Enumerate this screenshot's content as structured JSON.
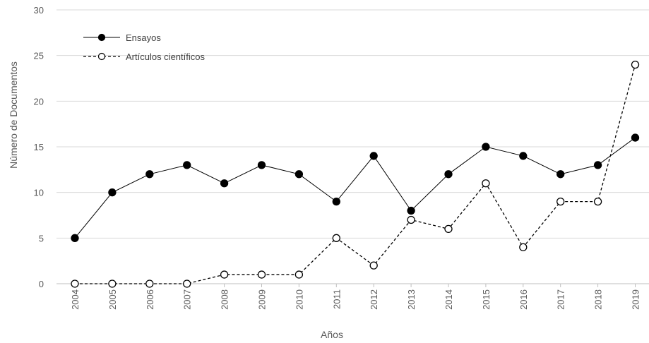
{
  "chart_data": {
    "type": "line",
    "title": "",
    "xlabel": "Años",
    "ylabel": "Número de Documentos",
    "categories": [
      "2004",
      "2005",
      "2006",
      "2007",
      "2008",
      "2009",
      "2010",
      "2011",
      "2012",
      "2013",
      "2014",
      "2015",
      "2016",
      "2017",
      "2018",
      "2019"
    ],
    "ylim": [
      0,
      30
    ],
    "yticks": [
      0,
      5,
      10,
      15,
      20,
      25,
      30
    ],
    "grid": "horizontal",
    "legend_position": "top-left",
    "series": [
      {
        "name": "Ensayos",
        "line_style": "solid",
        "marker": "filled-circle",
        "color": "#000000",
        "values": [
          5,
          10,
          12,
          13,
          11,
          13,
          12,
          9,
          14,
          8,
          12,
          15,
          14,
          12,
          13,
          16
        ]
      },
      {
        "name": "Artículos científicos",
        "line_style": "dashed",
        "marker": "open-circle",
        "color": "#000000",
        "values": [
          0,
          0,
          0,
          0,
          1,
          1,
          1,
          5,
          2,
          7,
          6,
          11,
          4,
          9,
          9,
          24
        ]
      }
    ]
  }
}
